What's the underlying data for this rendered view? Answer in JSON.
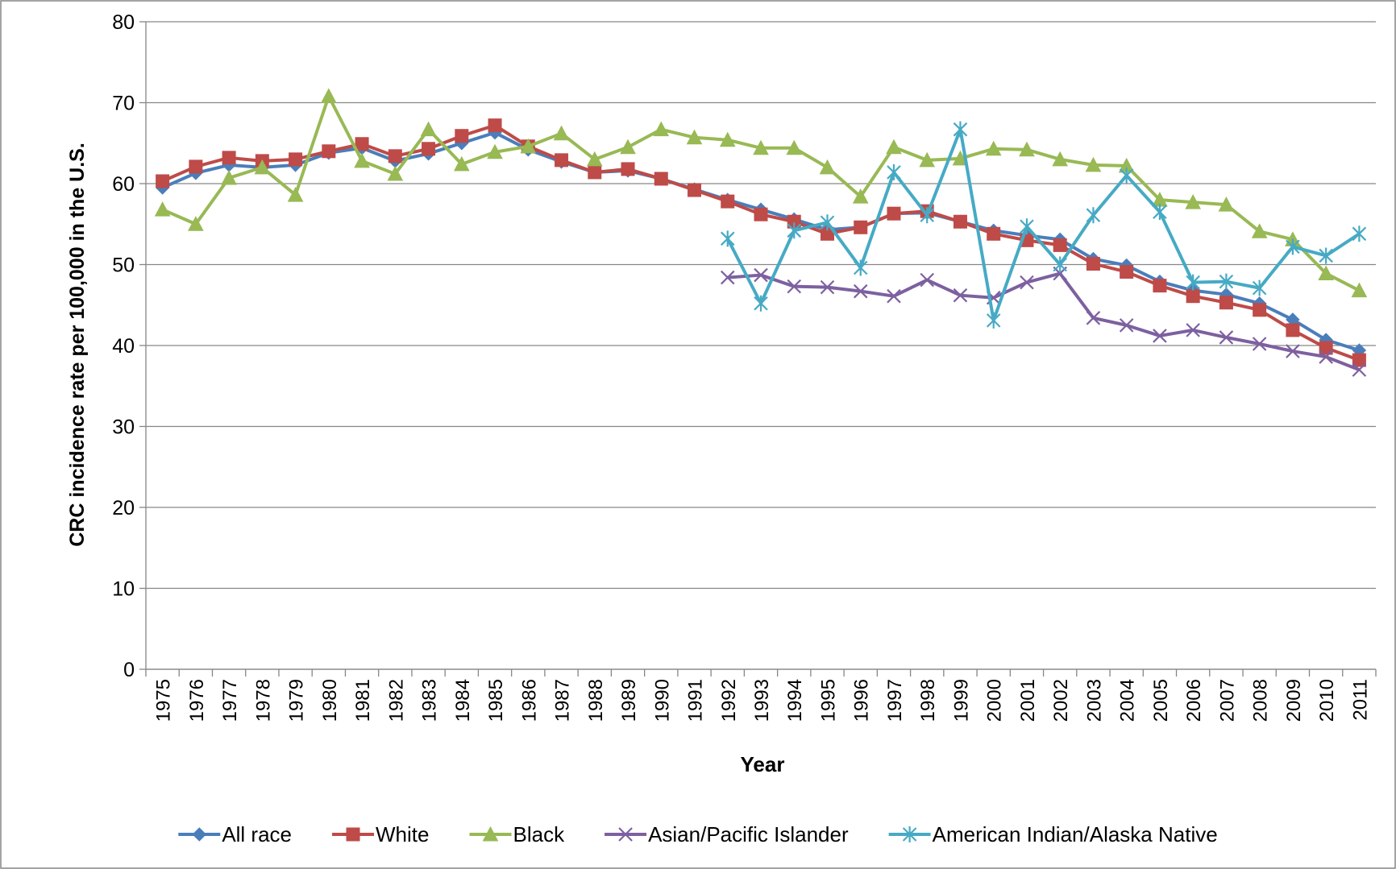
{
  "chart_data": {
    "type": "line",
    "x_label": "Year",
    "y_label": "CRC incidence rate per 100,000 in the U.S.",
    "categories": [
      "1975",
      "1976",
      "1977",
      "1978",
      "1979",
      "1980",
      "1981",
      "1982",
      "1983",
      "1984",
      "1985",
      "1986",
      "1987",
      "1988",
      "1989",
      "1990",
      "1991",
      "1992",
      "1993",
      "1994",
      "1995",
      "1996",
      "1997",
      "1998",
      "1999",
      "2000",
      "2001",
      "2002",
      "2003",
      "2004",
      "2005",
      "2006",
      "2007",
      "2008",
      "2009",
      "2010",
      "2011"
    ],
    "ylim": [
      0,
      80
    ],
    "yticks": [
      0,
      10,
      20,
      30,
      40,
      50,
      60,
      70,
      80
    ],
    "grid": true,
    "legend": "bottom",
    "series": [
      {
        "name": "All race",
        "color": "#4a7ebb",
        "marker": "diamond",
        "values": [
          59.5,
          61.3,
          62.3,
          62.0,
          62.3,
          63.8,
          64.4,
          62.8,
          63.7,
          65.0,
          66.3,
          64.2,
          62.7,
          61.4,
          61.6,
          60.6,
          59.3,
          58.0,
          56.8,
          55.6,
          54.3,
          54.6,
          56.3,
          56.4,
          55.3,
          54.2,
          53.6,
          53.1,
          50.7,
          49.9,
          47.9,
          46.8,
          46.3,
          45.2,
          43.2,
          40.7,
          39.4
        ]
      },
      {
        "name": "White",
        "color": "#be4b48",
        "marker": "square",
        "values": [
          60.3,
          62.1,
          63.2,
          62.8,
          63.0,
          64.0,
          64.9,
          63.4,
          64.3,
          65.9,
          67.2,
          64.6,
          62.9,
          61.4,
          61.8,
          60.6,
          59.2,
          57.8,
          56.2,
          55.3,
          53.8,
          54.6,
          56.3,
          56.6,
          55.3,
          53.8,
          53.0,
          52.4,
          50.1,
          49.1,
          47.4,
          46.1,
          45.3,
          44.4,
          41.9,
          39.7,
          38.2
        ]
      },
      {
        "name": "Black",
        "color": "#98b954",
        "marker": "triangle",
        "values": [
          56.8,
          55.0,
          60.7,
          62.0,
          58.6,
          70.8,
          62.8,
          61.2,
          66.7,
          62.4,
          63.9,
          64.6,
          66.2,
          63.0,
          64.5,
          66.7,
          65.7,
          65.4,
          64.4,
          64.4,
          62.0,
          58.4,
          64.5,
          62.9,
          63.1,
          64.3,
          64.2,
          63.0,
          62.3,
          62.2,
          58.0,
          57.7,
          57.4,
          54.1,
          53.1,
          48.9,
          46.8
        ]
      },
      {
        "name": "Asian/Pacific Islander",
        "color": "#7d60a0",
        "marker": "x",
        "values": [
          null,
          null,
          null,
          null,
          null,
          null,
          null,
          null,
          null,
          null,
          null,
          null,
          null,
          null,
          null,
          null,
          null,
          48.4,
          48.7,
          47.3,
          47.2,
          46.7,
          46.1,
          48.1,
          46.2,
          45.9,
          47.8,
          48.9,
          43.4,
          42.5,
          41.2,
          41.9,
          41.0,
          40.2,
          39.3,
          38.6,
          37.0
        ]
      },
      {
        "name": "American Indian/Alaska Native",
        "color": "#46aac5",
        "marker": "star",
        "values": [
          null,
          null,
          null,
          null,
          null,
          null,
          null,
          null,
          null,
          null,
          null,
          null,
          null,
          null,
          null,
          null,
          null,
          53.2,
          45.2,
          54.2,
          55.2,
          49.6,
          61.4,
          56.1,
          66.7,
          43.1,
          54.7,
          50.0,
          56.1,
          61.0,
          56.5,
          47.8,
          47.9,
          47.1,
          52.2,
          51.1,
          53.8
        ]
      }
    ]
  }
}
